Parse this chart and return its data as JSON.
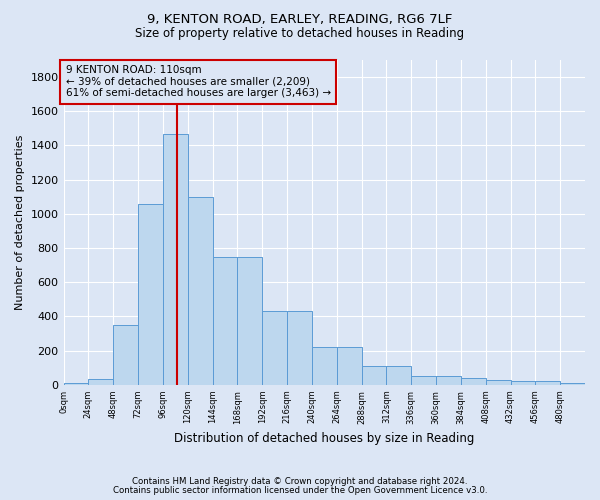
{
  "title_line1": "9, KENTON ROAD, EARLEY, READING, RG6 7LF",
  "title_line2": "Size of property relative to detached houses in Reading",
  "xlabel": "Distribution of detached houses by size in Reading",
  "ylabel": "Number of detached properties",
  "bar_values": [
    10,
    35,
    350,
    1060,
    1470,
    1100,
    745,
    745,
    430,
    430,
    220,
    220,
    110,
    110,
    50,
    50,
    40,
    30,
    20,
    20,
    10
  ],
  "bin_edges": [
    0,
    24,
    48,
    72,
    96,
    120,
    144,
    168,
    192,
    216,
    240,
    264,
    288,
    312,
    336,
    360,
    384,
    408,
    432,
    456,
    480,
    504
  ],
  "bar_color": "#bdd7ee",
  "bar_edge_color": "#5b9bd5",
  "property_size": 110,
  "annotation_text": "9 KENTON ROAD: 110sqm\n← 39% of detached houses are smaller (2,209)\n61% of semi-detached houses are larger (3,463) →",
  "annotation_box_color": "#cc0000",
  "vline_color": "#cc0000",
  "footnote_line1": "Contains HM Land Registry data © Crown copyright and database right 2024.",
  "footnote_line2": "Contains public sector information licensed under the Open Government Licence v3.0.",
  "ylim": [
    0,
    1900
  ],
  "xlim": [
    0,
    504
  ],
  "background_color": "#dce6f5",
  "grid_color": "#ffffff"
}
